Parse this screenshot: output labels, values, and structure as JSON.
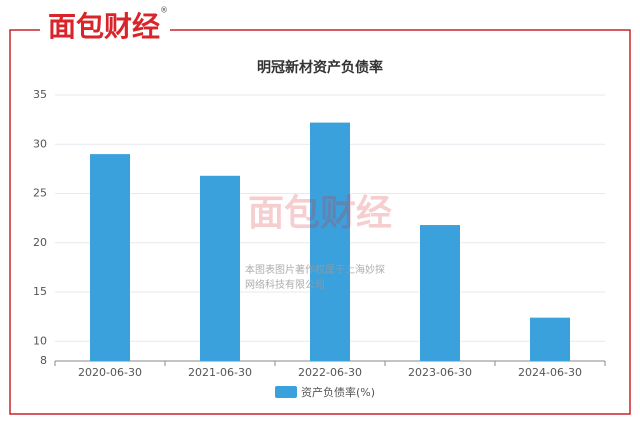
{
  "chart_data": {
    "type": "bar",
    "title": "明冠新材资产负债率",
    "logo": "面包财经",
    "logo_mark": "®",
    "watermark": [
      "本图表图片著作权属于上海妙探",
      "网络科技有限公司"
    ],
    "categories": [
      "2020-06-30",
      "2021-06-30",
      "2022-06-30",
      "2023-06-30",
      "2024-06-30"
    ],
    "series": [
      {
        "name": "资产负债率(%)",
        "color": "#3ba1dc",
        "values": [
          29.0,
          26.8,
          32.2,
          21.8,
          12.4
        ]
      }
    ],
    "ylim": [
      8,
      35
    ],
    "yticks": [
      8,
      10,
      15,
      20,
      25,
      30,
      35
    ],
    "grid": true,
    "legend": "bottom"
  }
}
